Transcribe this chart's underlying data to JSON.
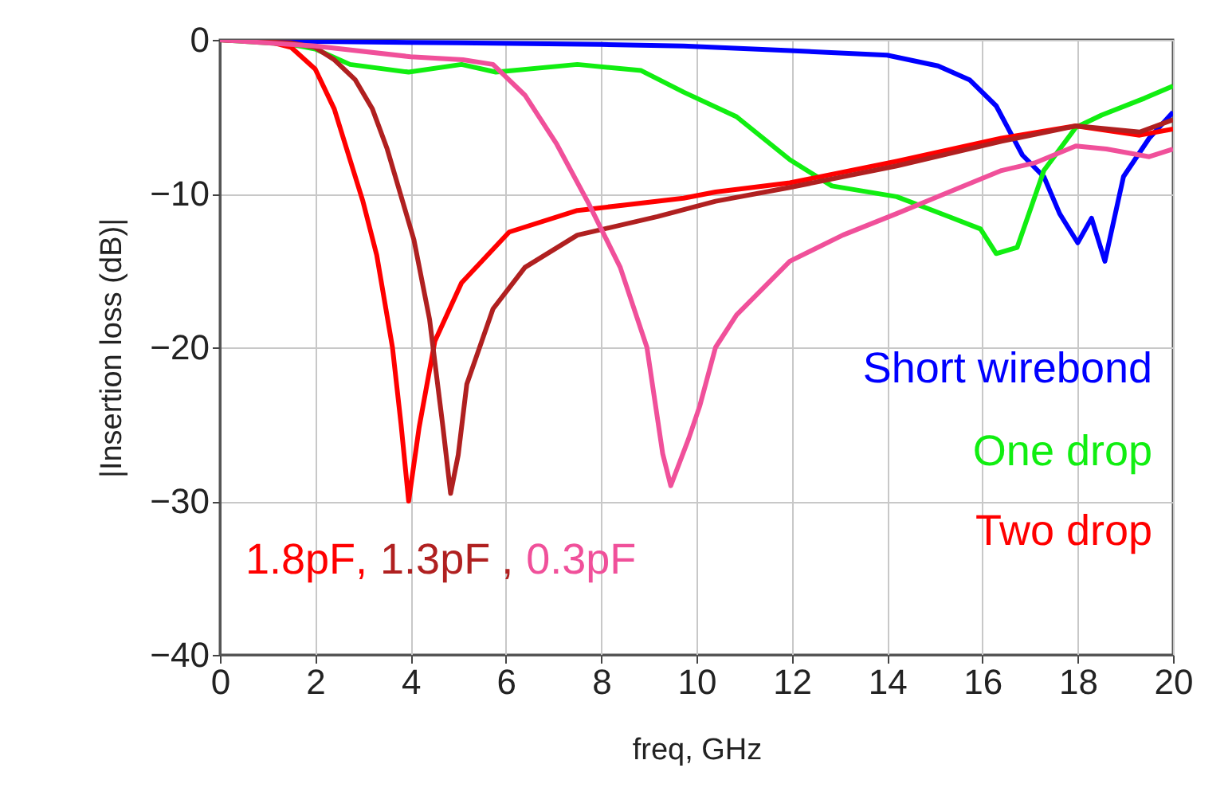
{
  "chart_data": {
    "type": "line",
    "xlabel": "freq, GHz",
    "ylabel": "|Insertion loss (dB)|",
    "xlim": [
      0,
      20
    ],
    "xticks": [
      0,
      2,
      4,
      6,
      8,
      10,
      12,
      14,
      16,
      18,
      20
    ],
    "ylim": [
      -40,
      0
    ],
    "yticks": [
      -40,
      -30,
      -20,
      -10,
      0
    ],
    "grid": true,
    "legend": false,
    "annotations": [
      "Two drop",
      ",",
      ","
    ],
    "series": [
      {
        "name": "Short wirebond",
        "color": "#0000ff",
        "x": [
          0,
          2,
          5,
          8,
          9.73,
          11.96,
          14,
          15.07,
          15.73,
          16.29,
          16.84,
          17.29,
          17.62,
          18.0,
          18.29,
          18.57,
          18.96,
          19.5,
          20
        ],
        "values": [
          0,
          -0.1,
          -0.2,
          -0.3,
          -0.4,
          -0.7,
          -1.0,
          -1.7,
          -2.6,
          -4.3,
          -7.5,
          -8.9,
          -11.3,
          -13.2,
          -11.6,
          -14.4,
          -8.9,
          -6.4,
          -4.7
        ]
      },
      {
        "name": "One drop",
        "color": "#11ee11",
        "x": [
          0,
          1.5,
          2,
          2.73,
          3.96,
          5.07,
          5.79,
          7.5,
          8.84,
          9.73,
          10.84,
          11.96,
          12.84,
          14.2,
          15.3,
          15.96,
          16.29,
          16.73,
          17.29,
          17.96,
          18.5,
          19.4,
          20
        ],
        "values": [
          0,
          -0.3,
          -0.6,
          -1.6,
          -2.1,
          -1.6,
          -2.1,
          -1.6,
          -2.0,
          -3.4,
          -5.0,
          -7.8,
          -9.5,
          -10.2,
          -11.5,
          -12.3,
          -13.9,
          -13.5,
          -8.5,
          -5.7,
          -4.9,
          -3.8,
          -3.0
        ]
      },
      {
        "name": "1.8pF",
        "color": "#ff0000",
        "x": [
          0,
          1,
          1.5,
          2,
          2.4,
          2.73,
          3.0,
          3.29,
          3.62,
          3.8,
          3.96,
          4.18,
          4.51,
          5.07,
          6.07,
          7.5,
          9.73,
          10.4,
          11.96,
          14.2,
          16.4,
          17.96,
          19.3,
          20
        ],
        "values": [
          0,
          -0.1,
          -0.5,
          -1.9,
          -4.5,
          -7.8,
          -10.5,
          -14,
          -20,
          -25,
          -30,
          -25.2,
          -19.6,
          -15.8,
          -12.5,
          -11.1,
          -10.3,
          -9.9,
          -9.3,
          -7.9,
          -6.4,
          -5.6,
          -6.2,
          -5.8
        ]
      },
      {
        "name": "1.3pF",
        "color": "#b02020",
        "x": [
          0,
          1.5,
          2,
          2.4,
          2.84,
          3.2,
          3.51,
          4.07,
          4.4,
          4.68,
          4.84,
          5.0,
          5.18,
          5.73,
          6.4,
          7.5,
          9.18,
          10.4,
          11.96,
          14.2,
          16.4,
          17.96,
          19.3,
          20
        ],
        "values": [
          0,
          -0.2,
          -0.5,
          -1.3,
          -2.6,
          -4.5,
          -7.1,
          -13,
          -18.2,
          -25.2,
          -29.5,
          -27,
          -22.4,
          -17.5,
          -14.8,
          -12.7,
          -11.5,
          -10.5,
          -9.6,
          -8.2,
          -6.6,
          -5.6,
          -6.0,
          -5.2
        ]
      },
      {
        "name": "0.3pF",
        "color": "#f0509a",
        "x": [
          0,
          2,
          4,
          5.1,
          5.73,
          6.4,
          7.07,
          7.73,
          8.4,
          8.96,
          9.29,
          9.46,
          9.84,
          10.07,
          10.4,
          10.84,
          11.96,
          13.07,
          14.2,
          15.3,
          16.4,
          17.1,
          17.96,
          18.6,
          19.5,
          20
        ],
        "values": [
          0,
          -0.4,
          -1.1,
          -1.3,
          -1.6,
          -3.6,
          -6.8,
          -10.6,
          -14.8,
          -20,
          -26.9,
          -29,
          -25.9,
          -23.8,
          -20,
          -17.9,
          -14.4,
          -12.7,
          -11.3,
          -9.9,
          -8.5,
          -8.0,
          -6.9,
          -7.1,
          -7.6,
          -7.1
        ]
      }
    ]
  }
}
